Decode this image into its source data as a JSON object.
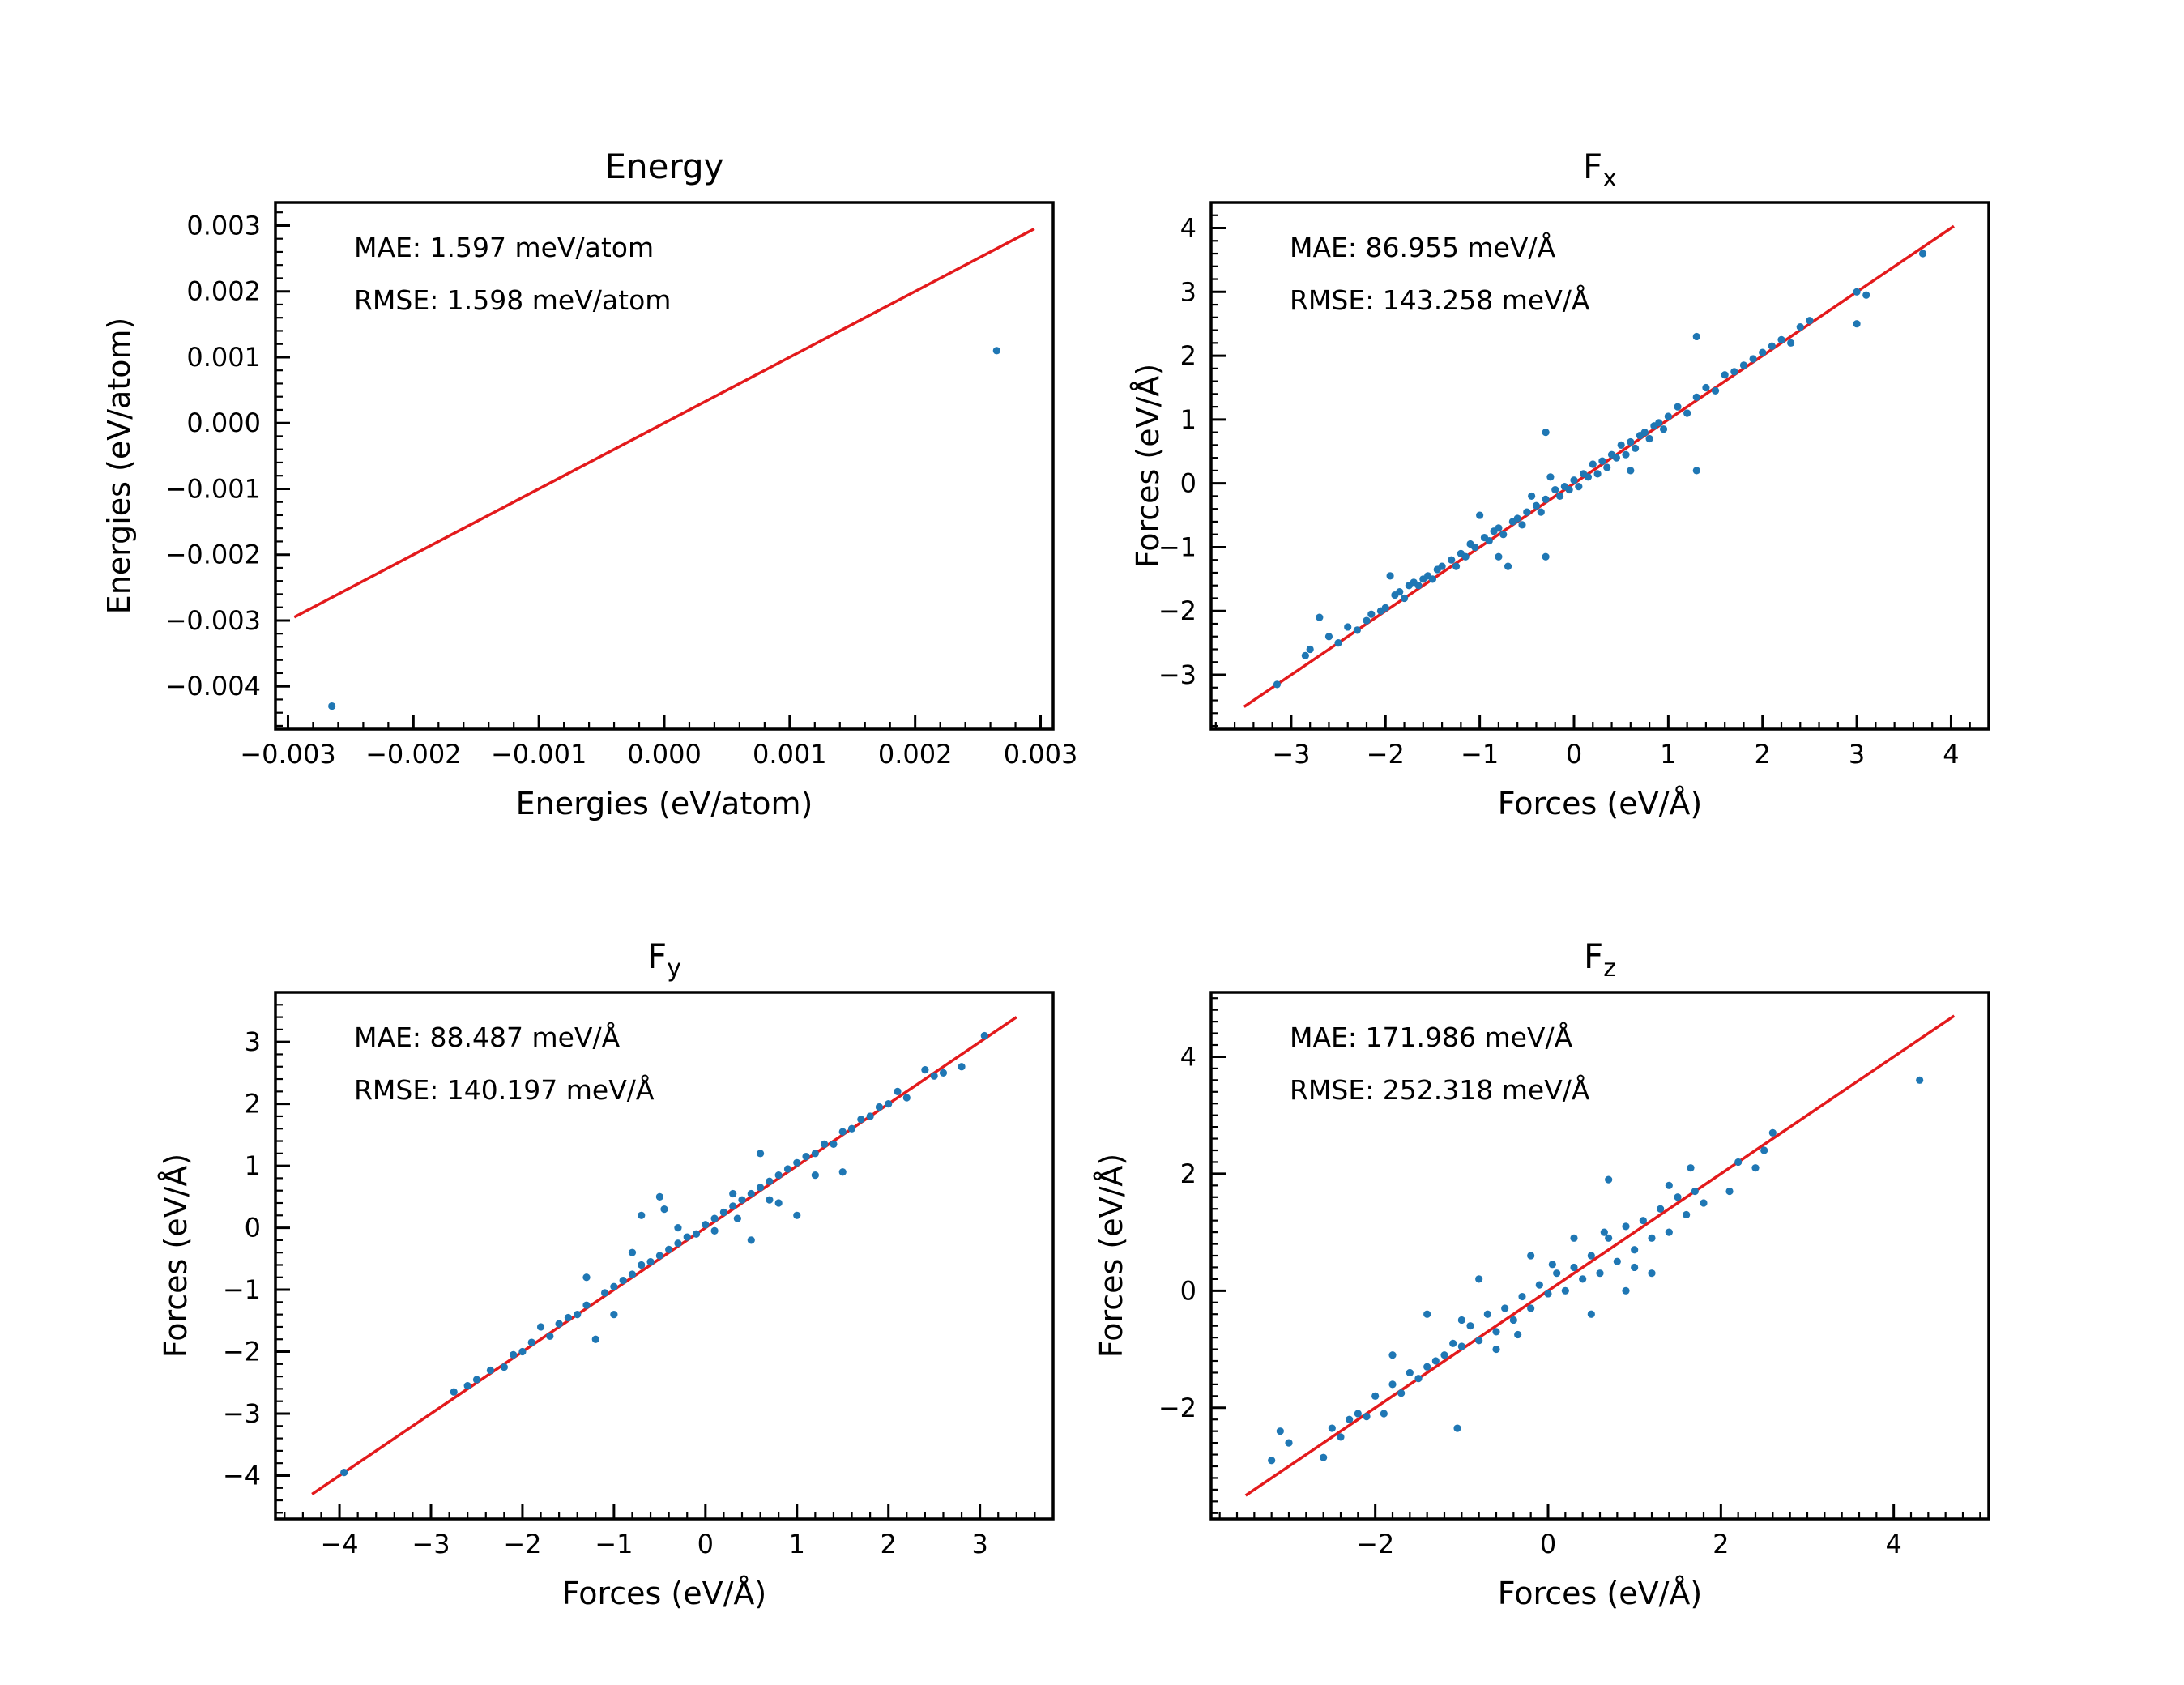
{
  "chart_data": [
    {
      "type": "scatter",
      "title": "Energy",
      "title_main": "Energy",
      "title_sub": "",
      "xlabel": "Energies (eV/atom)",
      "ylabel": "Energies (eV/atom)",
      "xlim": [
        -0.0031,
        0.0031
      ],
      "ylim": [
        -0.00465,
        0.00335
      ],
      "xticks": [
        -0.003,
        -0.002,
        -0.001,
        0.0,
        0.001,
        0.002,
        0.003
      ],
      "xtick_labels": [
        "−0.003",
        "−0.002",
        "−0.001",
        "0.000",
        "0.001",
        "0.002",
        "0.003"
      ],
      "yticks": [
        -0.004,
        -0.003,
        -0.002,
        -0.001,
        0.0,
        0.001,
        0.002,
        0.003
      ],
      "ytick_labels": [
        "−0.004",
        "−0.003",
        "−0.002",
        "−0.001",
        "0.000",
        "0.001",
        "0.002",
        "0.003"
      ],
      "minor_step": 0.0002,
      "annotations": [
        "MAE: 1.597 meV/atom",
        "RMSE: 1.598 meV/atom"
      ],
      "reference_line": [
        [
          -0.00295,
          -0.00295
        ],
        [
          0.00295,
          0.00295
        ]
      ],
      "points": [
        [
          -0.00265,
          -0.0043
        ],
        [
          0.00265,
          0.0011
        ]
      ],
      "point_color": "#1f77b4",
      "line_color": "#e31a1c",
      "grid": false
    },
    {
      "type": "scatter",
      "title": "Fx",
      "title_main": "F",
      "title_sub": "x",
      "xlabel": "Forces (eV/Å)",
      "ylabel": "Forces (eV/Å)",
      "xlim": [
        -3.85,
        4.4
      ],
      "ylim": [
        -3.85,
        4.4
      ],
      "xticks": [
        -3,
        -2,
        -1,
        0,
        1,
        2,
        3,
        4
      ],
      "xtick_labels": [
        "−3",
        "−2",
        "−1",
        "0",
        "1",
        "2",
        "3",
        "4"
      ],
      "yticks": [
        -3,
        -2,
        -1,
        0,
        1,
        2,
        3,
        4
      ],
      "ytick_labels": [
        "−3",
        "−2",
        "−1",
        "0",
        "1",
        "2",
        "3",
        "4"
      ],
      "minor_step": 0.2,
      "annotations": [
        "MAE: 86.955 meV/Å",
        "RMSE: 143.258 meV/Å"
      ],
      "reference_line": [
        [
          -3.5,
          -3.5
        ],
        [
          4.03,
          4.03
        ]
      ],
      "points": [
        [
          -3.15,
          -3.15
        ],
        [
          -2.85,
          -2.7
        ],
        [
          -2.8,
          -2.6
        ],
        [
          -2.7,
          -2.1
        ],
        [
          -2.6,
          -2.4
        ],
        [
          -2.5,
          -2.5
        ],
        [
          -2.4,
          -2.25
        ],
        [
          -2.3,
          -2.3
        ],
        [
          -2.2,
          -2.15
        ],
        [
          -2.15,
          -2.05
        ],
        [
          -2.05,
          -2.0
        ],
        [
          -2.0,
          -1.95
        ],
        [
          -1.95,
          -1.45
        ],
        [
          -1.9,
          -1.75
        ],
        [
          -1.85,
          -1.7
        ],
        [
          -1.8,
          -1.8
        ],
        [
          -1.75,
          -1.6
        ],
        [
          -1.7,
          -1.55
        ],
        [
          -1.65,
          -1.6
        ],
        [
          -1.6,
          -1.5
        ],
        [
          -1.55,
          -1.45
        ],
        [
          -1.5,
          -1.5
        ],
        [
          -1.45,
          -1.35
        ],
        [
          -1.4,
          -1.3
        ],
        [
          -1.3,
          -1.2
        ],
        [
          -1.25,
          -1.3
        ],
        [
          -1.2,
          -1.1
        ],
        [
          -1.15,
          -1.15
        ],
        [
          -1.1,
          -0.95
        ],
        [
          -1.05,
          -1.0
        ],
        [
          -1.0,
          -0.5
        ],
        [
          -0.95,
          -0.85
        ],
        [
          -0.9,
          -0.9
        ],
        [
          -0.85,
          -0.75
        ],
        [
          -0.8,
          -0.7
        ],
        [
          -0.75,
          -0.8
        ],
        [
          -0.7,
          -1.3
        ],
        [
          -0.65,
          -0.6
        ],
        [
          -0.6,
          -0.55
        ],
        [
          -0.55,
          -0.65
        ],
        [
          -0.5,
          -0.45
        ],
        [
          -0.45,
          -0.2
        ],
        [
          -0.4,
          -0.35
        ],
        [
          -0.35,
          -0.45
        ],
        [
          -0.3,
          -0.25
        ],
        [
          -0.25,
          0.1
        ],
        [
          -0.2,
          -0.1
        ],
        [
          -0.15,
          -0.2
        ],
        [
          -0.1,
          -0.05
        ],
        [
          -0.05,
          -0.1
        ],
        [
          0.0,
          0.05
        ],
        [
          0.05,
          -0.05
        ],
        [
          0.1,
          0.15
        ],
        [
          0.15,
          0.1
        ],
        [
          0.2,
          0.3
        ],
        [
          0.25,
          0.15
        ],
        [
          0.3,
          0.35
        ],
        [
          0.35,
          0.25
        ],
        [
          0.4,
          0.45
        ],
        [
          0.45,
          0.4
        ],
        [
          0.5,
          0.6
        ],
        [
          0.55,
          0.45
        ],
        [
          0.6,
          0.65
        ],
        [
          0.65,
          0.55
        ],
        [
          0.7,
          0.75
        ],
        [
          0.75,
          0.8
        ],
        [
          0.8,
          0.7
        ],
        [
          0.85,
          0.9
        ],
        [
          0.9,
          0.95
        ],
        [
          0.95,
          0.85
        ],
        [
          1.0,
          1.05
        ],
        [
          1.1,
          1.2
        ],
        [
          1.2,
          1.1
        ],
        [
          1.3,
          1.35
        ],
        [
          1.4,
          1.5
        ],
        [
          1.5,
          1.45
        ],
        [
          1.6,
          1.7
        ],
        [
          1.7,
          1.75
        ],
        [
          1.8,
          1.85
        ],
        [
          1.9,
          1.95
        ],
        [
          2.0,
          2.05
        ],
        [
          2.1,
          2.15
        ],
        [
          2.2,
          2.25
        ],
        [
          2.3,
          2.2
        ],
        [
          2.4,
          2.45
        ],
        [
          2.5,
          2.55
        ],
        [
          3.0,
          3.0
        ],
        [
          3.0,
          2.5
        ],
        [
          3.1,
          2.95
        ],
        [
          3.7,
          3.6
        ],
        [
          -0.3,
          0.8
        ],
        [
          0.6,
          0.2
        ],
        [
          1.3,
          2.3
        ],
        [
          1.3,
          0.2
        ],
        [
          -0.3,
          -1.15
        ],
        [
          -0.8,
          -1.15
        ]
      ],
      "point_color": "#1f77b4",
      "line_color": "#e31a1c",
      "grid": false
    },
    {
      "type": "scatter",
      "title": "Fy",
      "title_main": "F",
      "title_sub": "y",
      "xlabel": "Forces (eV/Å)",
      "ylabel": "Forces (eV/Å)",
      "xlim": [
        -4.7,
        3.8
      ],
      "ylim": [
        -4.7,
        3.8
      ],
      "xticks": [
        -4,
        -3,
        -2,
        -1,
        0,
        1,
        2,
        3
      ],
      "xtick_labels": [
        "−4",
        "−3",
        "−2",
        "−1",
        "0",
        "1",
        "2",
        "3"
      ],
      "yticks": [
        -4,
        -3,
        -2,
        -1,
        0,
        1,
        2,
        3
      ],
      "ytick_labels": [
        "−4",
        "−3",
        "−2",
        "−1",
        "0",
        "1",
        "2",
        "3"
      ],
      "minor_step": 0.2,
      "annotations": [
        "MAE: 88.487 meV/Å",
        "RMSE: 140.197 meV/Å"
      ],
      "reference_line": [
        [
          -4.3,
          -4.3
        ],
        [
          3.4,
          3.4
        ]
      ],
      "points": [
        [
          -3.95,
          -3.95
        ],
        [
          -2.75,
          -2.65
        ],
        [
          -2.6,
          -2.55
        ],
        [
          -2.5,
          -2.45
        ],
        [
          -2.35,
          -2.3
        ],
        [
          -2.2,
          -2.25
        ],
        [
          -2.1,
          -2.05
        ],
        [
          -2.0,
          -2.0
        ],
        [
          -1.9,
          -1.85
        ],
        [
          -1.8,
          -1.6
        ],
        [
          -1.7,
          -1.75
        ],
        [
          -1.6,
          -1.55
        ],
        [
          -1.5,
          -1.45
        ],
        [
          -1.4,
          -1.4
        ],
        [
          -1.3,
          -1.25
        ],
        [
          -1.2,
          -1.8
        ],
        [
          -1.1,
          -1.05
        ],
        [
          -1.0,
          -0.95
        ],
        [
          -0.9,
          -0.85
        ],
        [
          -0.8,
          -0.75
        ],
        [
          -0.7,
          -0.6
        ],
        [
          -0.6,
          -0.55
        ],
        [
          -0.5,
          -0.45
        ],
        [
          -0.4,
          -0.35
        ],
        [
          -0.3,
          -0.25
        ],
        [
          -0.2,
          -0.15
        ],
        [
          -0.1,
          -0.1
        ],
        [
          0.0,
          0.05
        ],
        [
          0.1,
          0.15
        ],
        [
          0.2,
          0.25
        ],
        [
          0.3,
          0.35
        ],
        [
          0.4,
          0.45
        ],
        [
          0.5,
          0.55
        ],
        [
          0.6,
          0.65
        ],
        [
          0.7,
          0.75
        ],
        [
          0.8,
          0.85
        ],
        [
          0.9,
          0.95
        ],
        [
          1.0,
          1.05
        ],
        [
          1.1,
          1.15
        ],
        [
          1.2,
          1.2
        ],
        [
          1.3,
          1.35
        ],
        [
          1.4,
          1.35
        ],
        [
          1.5,
          1.55
        ],
        [
          1.6,
          1.6
        ],
        [
          1.7,
          1.75
        ],
        [
          1.8,
          1.8
        ],
        [
          1.9,
          1.95
        ],
        [
          2.0,
          2.0
        ],
        [
          2.1,
          2.2
        ],
        [
          2.2,
          2.1
        ],
        [
          2.4,
          2.55
        ],
        [
          2.5,
          2.45
        ],
        [
          2.6,
          2.5
        ],
        [
          2.8,
          2.6
        ],
        [
          3.05,
          3.1
        ],
        [
          -0.7,
          0.2
        ],
        [
          -0.5,
          0.5
        ],
        [
          0.5,
          -0.2
        ],
        [
          1.0,
          0.2
        ],
        [
          1.5,
          0.9
        ],
        [
          -0.45,
          0.3
        ],
        [
          -1.3,
          -0.8
        ],
        [
          0.3,
          0.55
        ],
        [
          0.8,
          0.4
        ],
        [
          -0.8,
          -0.4
        ],
        [
          0.6,
          1.2
        ],
        [
          -1.0,
          -1.4
        ],
        [
          0.1,
          -0.05
        ],
        [
          0.35,
          0.15
        ],
        [
          0.7,
          0.45
        ],
        [
          1.2,
          0.85
        ],
        [
          -0.3,
          0.0
        ]
      ],
      "point_color": "#1f77b4",
      "line_color": "#e31a1c",
      "grid": false
    },
    {
      "type": "scatter",
      "title": "Fz",
      "title_main": "F",
      "title_sub": "z",
      "xlabel": "Forces (eV/Å)",
      "ylabel": "Forces (eV/Å)",
      "xlim": [
        -3.9,
        5.1
      ],
      "ylim": [
        -3.9,
        5.1
      ],
      "xticks": [
        -2,
        0,
        2,
        4
      ],
      "xtick_labels": [
        "−2",
        "0",
        "2",
        "4"
      ],
      "yticks": [
        -2,
        0,
        2,
        4
      ],
      "ytick_labels": [
        "−2",
        "0",
        "2",
        "4"
      ],
      "minor_step": 0.2,
      "annotations": [
        "MAE: 171.986 meV/Å",
        "RMSE: 252.318 meV/Å"
      ],
      "reference_line": [
        [
          -3.5,
          -3.5
        ],
        [
          4.7,
          4.7
        ]
      ],
      "points": [
        [
          -3.2,
          -2.9
        ],
        [
          -3.1,
          -2.4
        ],
        [
          -3.0,
          -2.6
        ],
        [
          -2.6,
          -2.85
        ],
        [
          -2.5,
          -2.35
        ],
        [
          -2.4,
          -2.5
        ],
        [
          -2.3,
          -2.2
        ],
        [
          -2.2,
          -2.1
        ],
        [
          -2.1,
          -2.15
        ],
        [
          -2.0,
          -1.8
        ],
        [
          -1.9,
          -2.1
        ],
        [
          -1.8,
          -1.6
        ],
        [
          -1.7,
          -1.75
        ],
        [
          -1.6,
          -1.4
        ],
        [
          -1.5,
          -1.5
        ],
        [
          -1.4,
          -1.3
        ],
        [
          -1.3,
          -1.2
        ],
        [
          -1.2,
          -1.1
        ],
        [
          -1.1,
          -0.9
        ],
        [
          -1.05,
          -2.35
        ],
        [
          -1.0,
          -0.95
        ],
        [
          -0.9,
          -0.6
        ],
        [
          -0.8,
          -0.85
        ],
        [
          -0.7,
          -0.4
        ],
        [
          -0.6,
          -0.7
        ],
        [
          -0.5,
          -0.3
        ],
        [
          -0.4,
          -0.5
        ],
        [
          -0.3,
          -0.1
        ],
        [
          -0.2,
          -0.3
        ],
        [
          -0.1,
          0.1
        ],
        [
          0.0,
          -0.05
        ],
        [
          0.1,
          0.3
        ],
        [
          0.2,
          0.0
        ],
        [
          0.3,
          0.4
        ],
        [
          0.4,
          0.2
        ],
        [
          0.5,
          0.6
        ],
        [
          0.6,
          0.3
        ],
        [
          0.7,
          0.9
        ],
        [
          0.8,
          0.5
        ],
        [
          0.9,
          1.1
        ],
        [
          1.0,
          0.7
        ],
        [
          1.1,
          1.2
        ],
        [
          1.2,
          0.9
        ],
        [
          1.3,
          1.4
        ],
        [
          1.4,
          1.0
        ],
        [
          1.5,
          1.6
        ],
        [
          1.6,
          1.3
        ],
        [
          1.7,
          1.7
        ],
        [
          1.8,
          1.5
        ],
        [
          2.1,
          1.7
        ],
        [
          2.2,
          2.2
        ],
        [
          2.4,
          2.1
        ],
        [
          2.5,
          2.4
        ],
        [
          2.6,
          2.7
        ],
        [
          4.3,
          3.6
        ],
        [
          0.7,
          1.9
        ],
        [
          1.65,
          2.1
        ],
        [
          -1.4,
          -0.4
        ],
        [
          -0.8,
          0.2
        ],
        [
          0.5,
          -0.4
        ],
        [
          1.2,
          0.3
        ],
        [
          -0.2,
          0.6
        ],
        [
          -1.8,
          -1.1
        ],
        [
          0.9,
          0.0
        ],
        [
          -0.6,
          -1.0
        ],
        [
          0.3,
          0.9
        ],
        [
          1.4,
          1.8
        ],
        [
          -1.0,
          -0.5
        ],
        [
          0.05,
          0.45
        ],
        [
          -0.35,
          -0.75
        ],
        [
          0.65,
          1.0
        ],
        [
          1.0,
          0.4
        ]
      ],
      "point_color": "#1f77b4",
      "line_color": "#e31a1c",
      "grid": false
    }
  ]
}
